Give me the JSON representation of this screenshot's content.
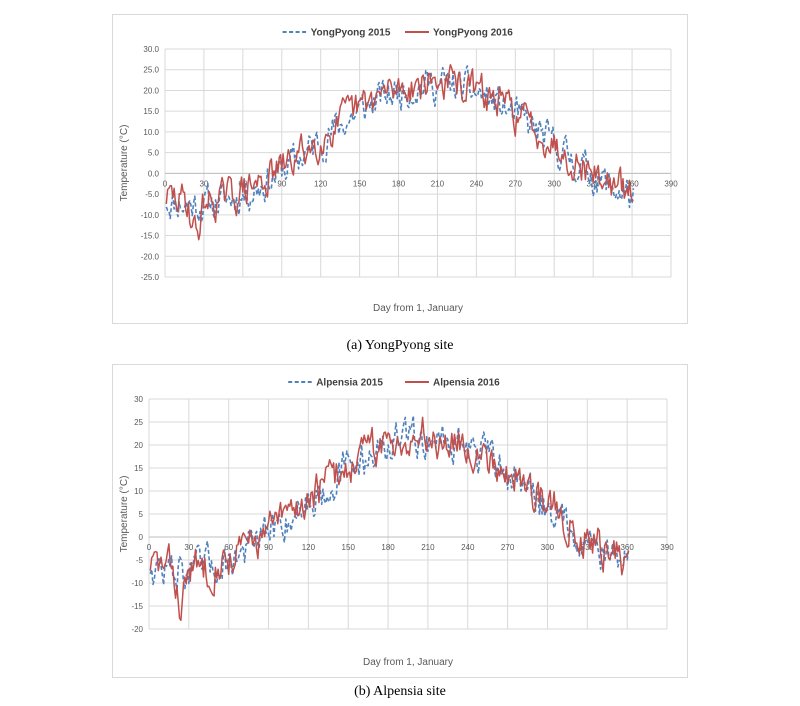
{
  "chart_data": [
    {
      "type": "line",
      "legend_position": "top",
      "xlabel": "Day from 1, January",
      "ylabel": "Temperature (°C)",
      "xlim": [
        0,
        390
      ],
      "ylim": [
        -25,
        30
      ],
      "x_ticks": [
        "0",
        "30",
        "60",
        "90",
        "120",
        "150",
        "180",
        "210",
        "240",
        "270",
        "300",
        "330",
        "360",
        "390"
      ],
      "y_ticks": [
        "-25.0",
        "-20.0",
        "-15.0",
        "-10.0",
        "-5.0",
        "0.0",
        "5.0",
        "10.0",
        "15.0",
        "20.0",
        "25.0",
        "30.0"
      ],
      "caption": "(a) YongPyong site",
      "series": [
        {
          "name": "YongPyong 2015",
          "style": "dashed",
          "color": "#4f81bd"
        },
        {
          "name": "YongPyong 2016",
          "style": "solid",
          "color": "#c0504d"
        }
      ]
    },
    {
      "type": "line",
      "legend_position": "top",
      "xlabel": "Day from 1, January",
      "ylabel": "Temperature (°C)",
      "xlim": [
        0,
        390
      ],
      "ylim": [
        -20,
        30
      ],
      "x_ticks": [
        "0",
        "30",
        "60",
        "90",
        "120",
        "150",
        "180",
        "210",
        "240",
        "270",
        "300",
        "330",
        "360",
        "390"
      ],
      "y_ticks": [
        "-20",
        "-15",
        "-10",
        "-5",
        "0",
        "5",
        "10",
        "15",
        "20",
        "25",
        "30"
      ],
      "caption": "(b) Alpensia site",
      "series": [
        {
          "name": "Alpensia 2015",
          "style": "dashed",
          "color": "#4f81bd"
        },
        {
          "name": "Alpensia 2016",
          "style": "solid",
          "color": "#c0504d"
        }
      ]
    }
  ]
}
